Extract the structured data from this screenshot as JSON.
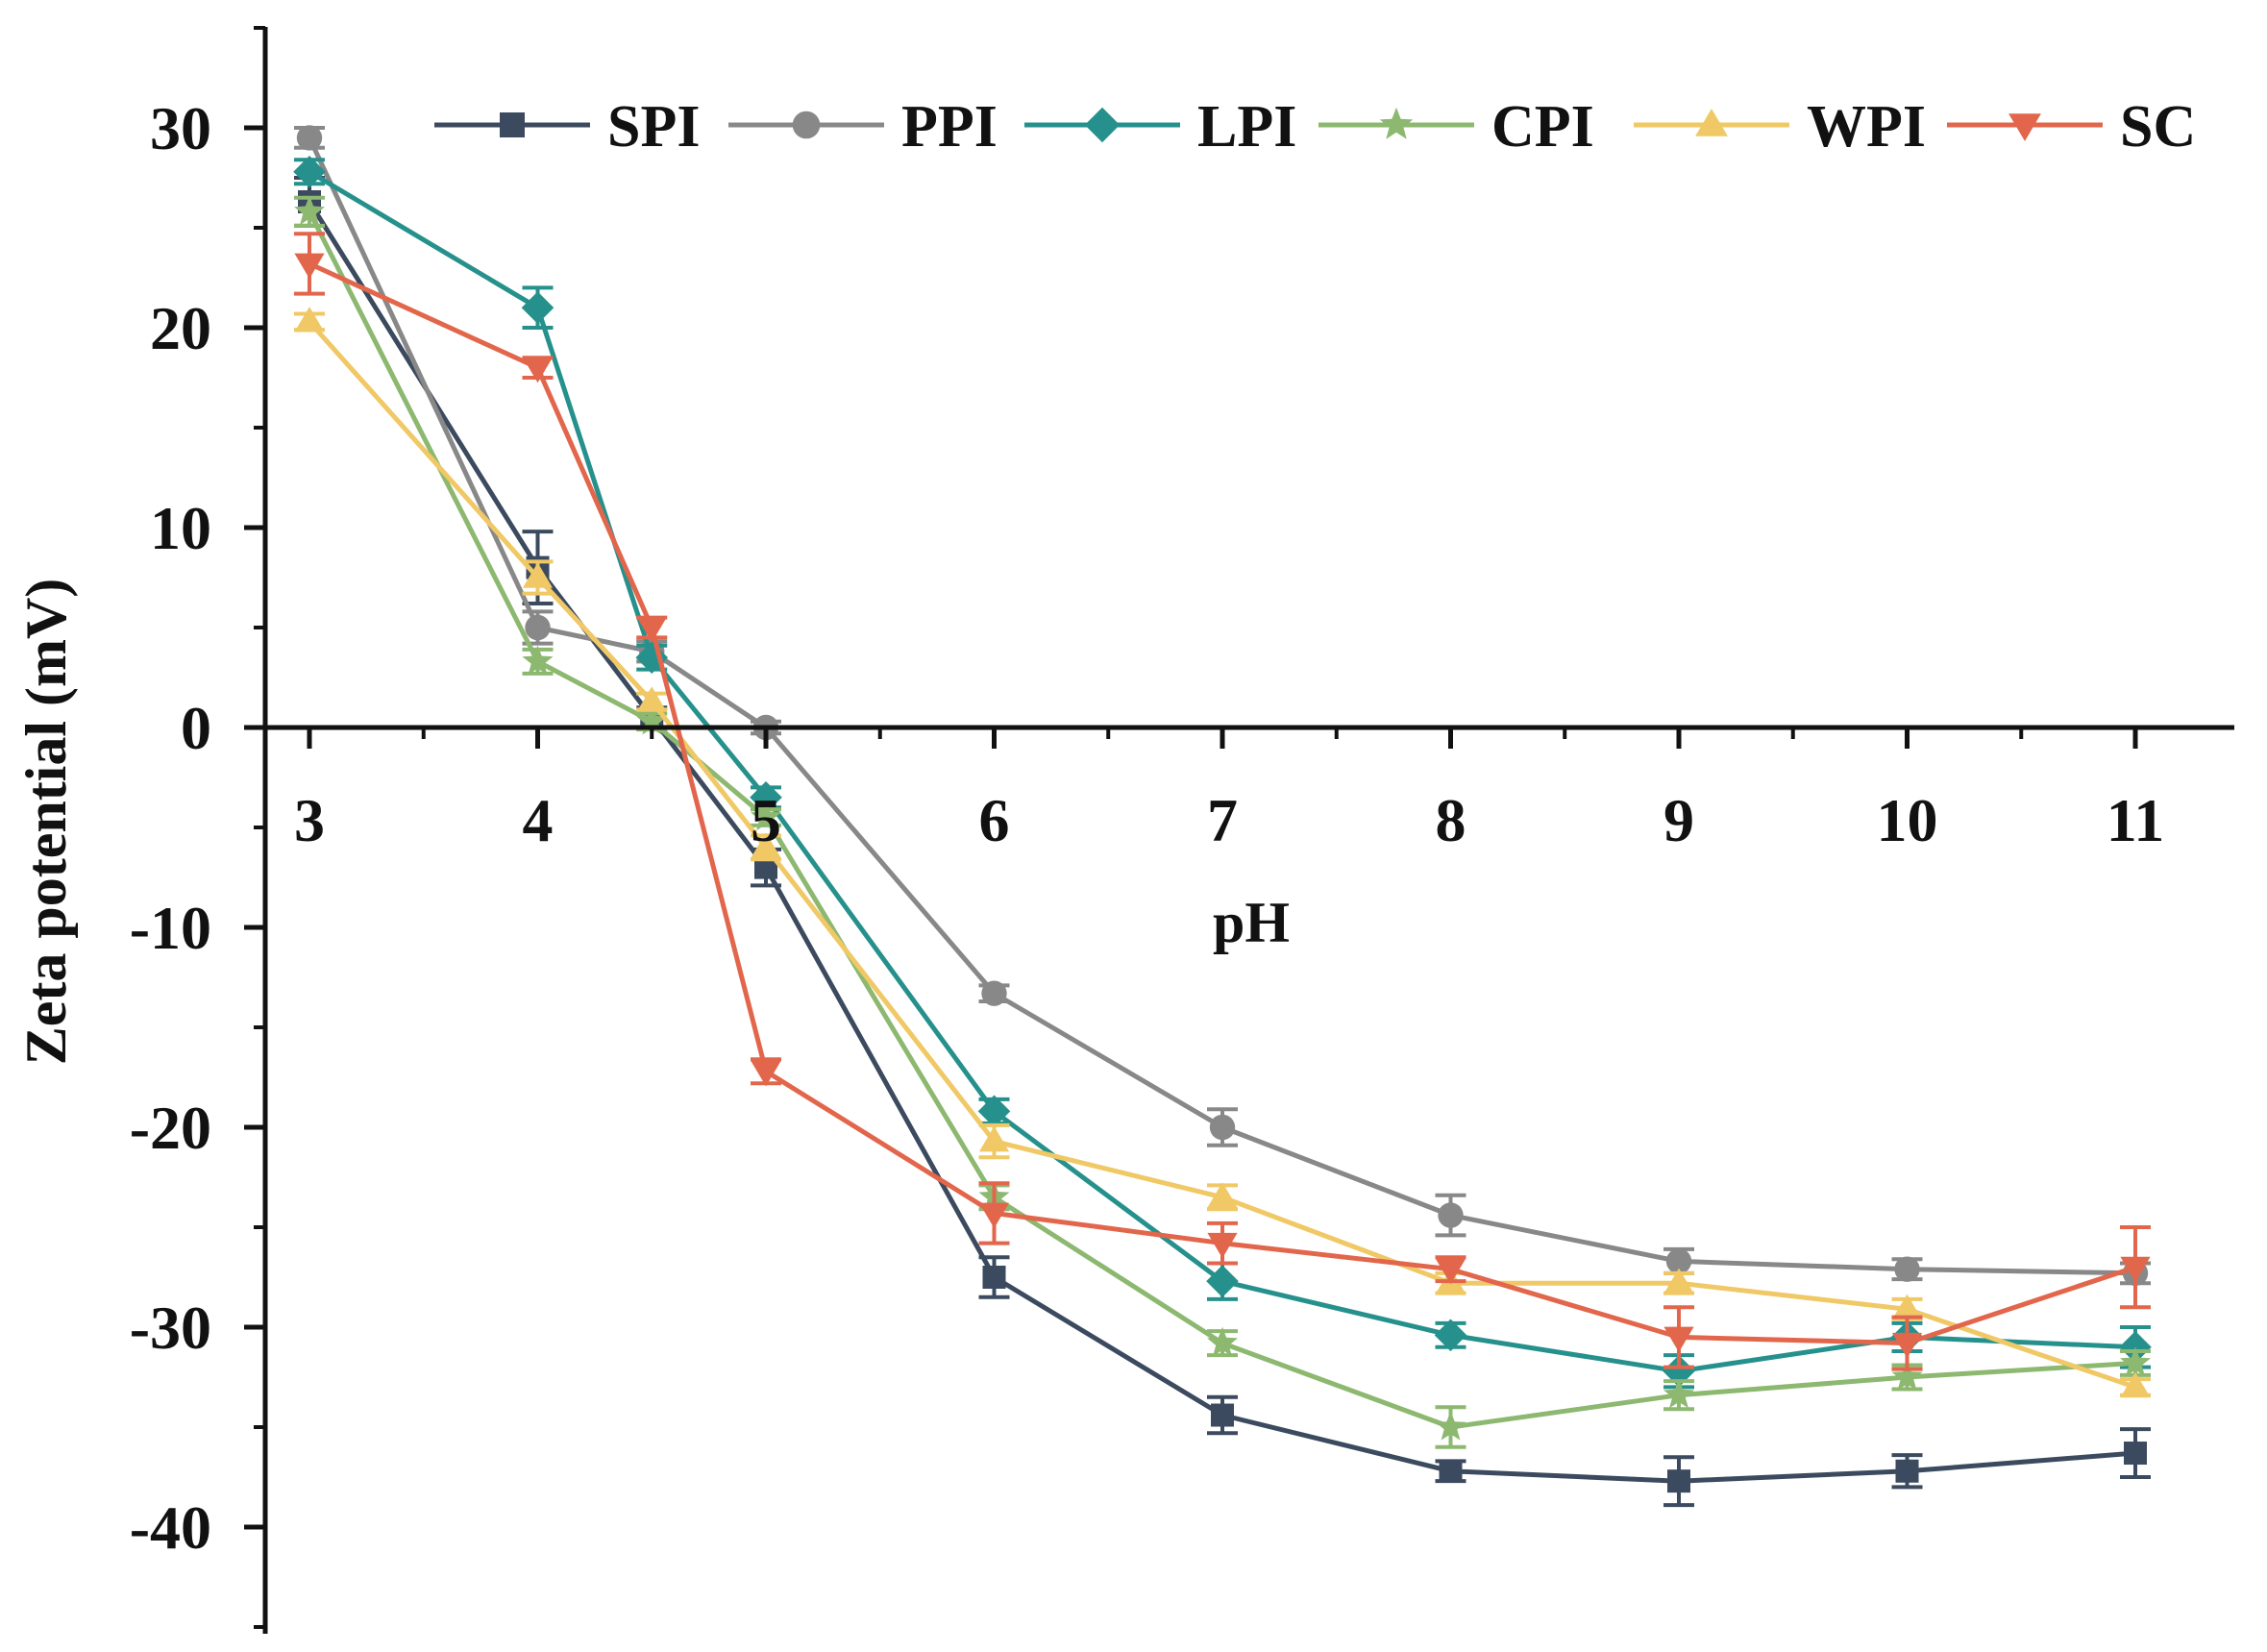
{
  "chart_data": {
    "type": "line",
    "title": "",
    "xlabel": "pH",
    "ylabel": "Zeta potential (mV)",
    "x": [
      3,
      4,
      4.5,
      5,
      6,
      7,
      8,
      9,
      10,
      11
    ],
    "xticks": [
      3,
      4,
      5,
      6,
      7,
      8,
      9,
      10,
      11
    ],
    "xtick_labels": [
      "3",
      "4",
      "5",
      "6",
      "7",
      "8",
      "9",
      "10",
      "11"
    ],
    "yticks": [
      30,
      20,
      10,
      0,
      -10,
      -20,
      -30,
      -40
    ],
    "ytick_labels": [
      "30",
      "20",
      "10",
      "0",
      "-10",
      "-20",
      "-30",
      "-40"
    ],
    "xlim": [
      2.8,
      11.35
    ],
    "ylim": [
      -44,
      35
    ],
    "legend_position": "top",
    "series": [
      {
        "name": "SPI",
        "color": "#3b4a5e",
        "marker": "square",
        "values": [
          26.3,
          8.0,
          0.5,
          -7.0,
          -27.5,
          -34.4,
          -37.2,
          -37.7,
          -37.2,
          -36.3
        ],
        "errors": [
          1.2,
          1.8,
          0.5,
          0.9,
          1.0,
          0.9,
          0.5,
          1.2,
          0.8,
          1.2
        ]
      },
      {
        "name": "PPI",
        "color": "#888888",
        "marker": "circle",
        "values": [
          29.5,
          5.0,
          3.8,
          0.0,
          -13.3,
          -20.0,
          -24.4,
          -26.7,
          -27.1,
          -27.3
        ],
        "errors": [
          0.5,
          0.8,
          0.5,
          0.3,
          0.4,
          0.9,
          1.0,
          0.6,
          0.5,
          0.5
        ]
      },
      {
        "name": "LPI",
        "color": "#26918c",
        "marker": "diamond",
        "values": [
          27.8,
          21.0,
          3.5,
          -3.5,
          -19.2,
          -27.7,
          -30.4,
          -32.2,
          -30.5,
          -31.0
        ],
        "errors": [
          0.6,
          1.0,
          0.6,
          0.5,
          0.6,
          0.9,
          0.6,
          0.8,
          0.7,
          1.0
        ]
      },
      {
        "name": "CPI",
        "color": "#8db870",
        "marker": "star",
        "values": [
          25.8,
          3.3,
          0.3,
          -4.5,
          -23.5,
          -30.8,
          -35.0,
          -33.4,
          -32.5,
          -31.8
        ],
        "errors": [
          0.7,
          0.6,
          0.4,
          0.4,
          0.6,
          0.6,
          1.0,
          0.7,
          0.6,
          0.6
        ]
      },
      {
        "name": "WPI",
        "color": "#f0c865",
        "marker": "triangle-up",
        "values": [
          20.3,
          7.5,
          1.3,
          -6.0,
          -20.7,
          -23.5,
          -27.8,
          -27.8,
          -29.1,
          -33.0
        ],
        "errors": [
          0.4,
          0.8,
          0.4,
          0.6,
          0.8,
          0.6,
          0.5,
          0.5,
          0.5,
          0.4
        ]
      },
      {
        "name": "SC",
        "color": "#e2664b",
        "marker": "triangle-down",
        "values": [
          23.2,
          18.0,
          5.0,
          -17.2,
          -24.3,
          -25.8,
          -27.1,
          -30.5,
          -30.8,
          -27.0
        ],
        "errors": [
          1.5,
          0.5,
          0.5,
          0.6,
          1.5,
          1.0,
          0.6,
          1.5,
          1.3,
          2.0
        ]
      }
    ]
  }
}
